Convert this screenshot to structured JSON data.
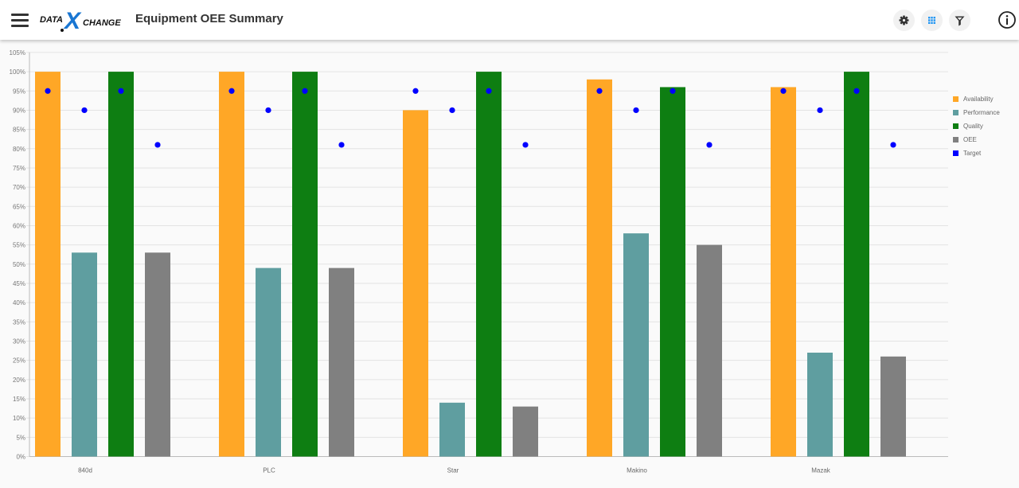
{
  "app": {
    "title": "Equipment OEE Summary",
    "logo_text_left": "DATA",
    "logo_text_x": "X",
    "logo_text_right": "CHANGE"
  },
  "toolbar": {
    "settings_icon": "gear-icon",
    "grid_icon": "grid-icon",
    "filter_icon": "filter-icon",
    "info_icon": "info-icon"
  },
  "colors": {
    "availability": "#FFA726",
    "performance": "#5F9EA0",
    "quality": "#0E7E12",
    "oee": "#808080",
    "target": "#0000FF",
    "grid_accent": "#2196F3"
  },
  "chart_data": {
    "type": "bar",
    "categories": [
      "840d",
      "PLC",
      "Star",
      "Makino",
      "Mazak"
    ],
    "series": [
      {
        "name": "Availability",
        "values": [
          100,
          100,
          90,
          98,
          96
        ]
      },
      {
        "name": "Performance",
        "values": [
          53,
          49,
          14,
          58,
          27
        ]
      },
      {
        "name": "Quality",
        "values": [
          100,
          100,
          100,
          96,
          100
        ]
      },
      {
        "name": "OEE",
        "values": [
          53,
          49,
          13,
          55,
          26
        ]
      }
    ],
    "target_points": [
      [
        95,
        90,
        95,
        81
      ],
      [
        95,
        90,
        95,
        81
      ],
      [
        95,
        90,
        95,
        81
      ],
      [
        95,
        90,
        95,
        81
      ],
      [
        95,
        90,
        95,
        81
      ]
    ],
    "target_name": "Target",
    "yticks": [
      "0%",
      "5%",
      "10%",
      "15%",
      "20%",
      "25%",
      "30%",
      "35%",
      "40%",
      "45%",
      "50%",
      "55%",
      "60%",
      "65%",
      "70%",
      "75%",
      "80%",
      "85%",
      "90%",
      "95%",
      "100%",
      "105%"
    ],
    "ylim": [
      0,
      105
    ],
    "grid": true,
    "legend_position": "top-right"
  }
}
